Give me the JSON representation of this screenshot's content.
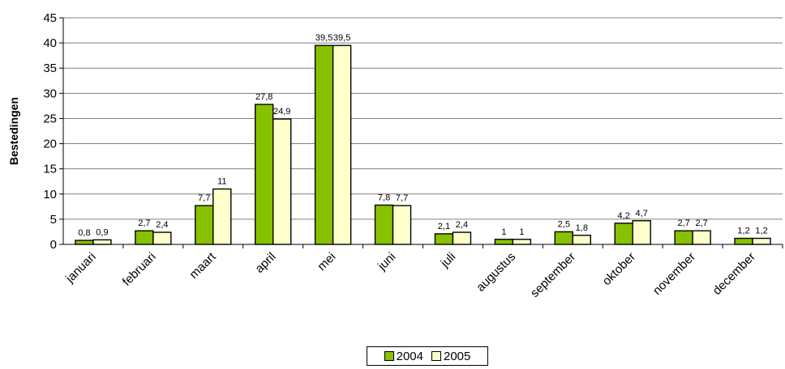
{
  "chart_data": {
    "type": "bar",
    "title": "",
    "xlabel": "",
    "ylabel": "Bestedingen",
    "ylim": [
      0,
      45
    ],
    "yticks": [
      0,
      5,
      10,
      15,
      20,
      25,
      30,
      35,
      40,
      45
    ],
    "grid": true,
    "legend_position": "bottom",
    "categories": [
      "januari",
      "februari",
      "maart",
      "april",
      "mei",
      "juni",
      "juli",
      "augustus",
      "september",
      "oktober",
      "november",
      "december"
    ],
    "series": [
      {
        "name": "2004",
        "color": "#88c100",
        "values": [
          0.8,
          2.7,
          7.7,
          27.8,
          39.5,
          7.8,
          2.1,
          1,
          2.5,
          4.2,
          2.7,
          1.2
        ],
        "labels": [
          "0,8",
          "2,7",
          "7,7",
          "27,8",
          "39,5",
          "7,8",
          "2,1",
          "1",
          "2,5",
          "4,2",
          "2,7",
          "1,2"
        ]
      },
      {
        "name": "2005",
        "color": "#ffffcc",
        "values": [
          0.9,
          2.4,
          11,
          24.9,
          39.5,
          7.7,
          2.4,
          1,
          1.8,
          4.7,
          2.7,
          1.2
        ],
        "labels": [
          "0,9",
          "2,4",
          "11",
          "24,9",
          "39,5",
          "7,7",
          "2,4",
          "1",
          "1,8",
          "4,7",
          "2,7",
          "1,2"
        ]
      }
    ]
  }
}
